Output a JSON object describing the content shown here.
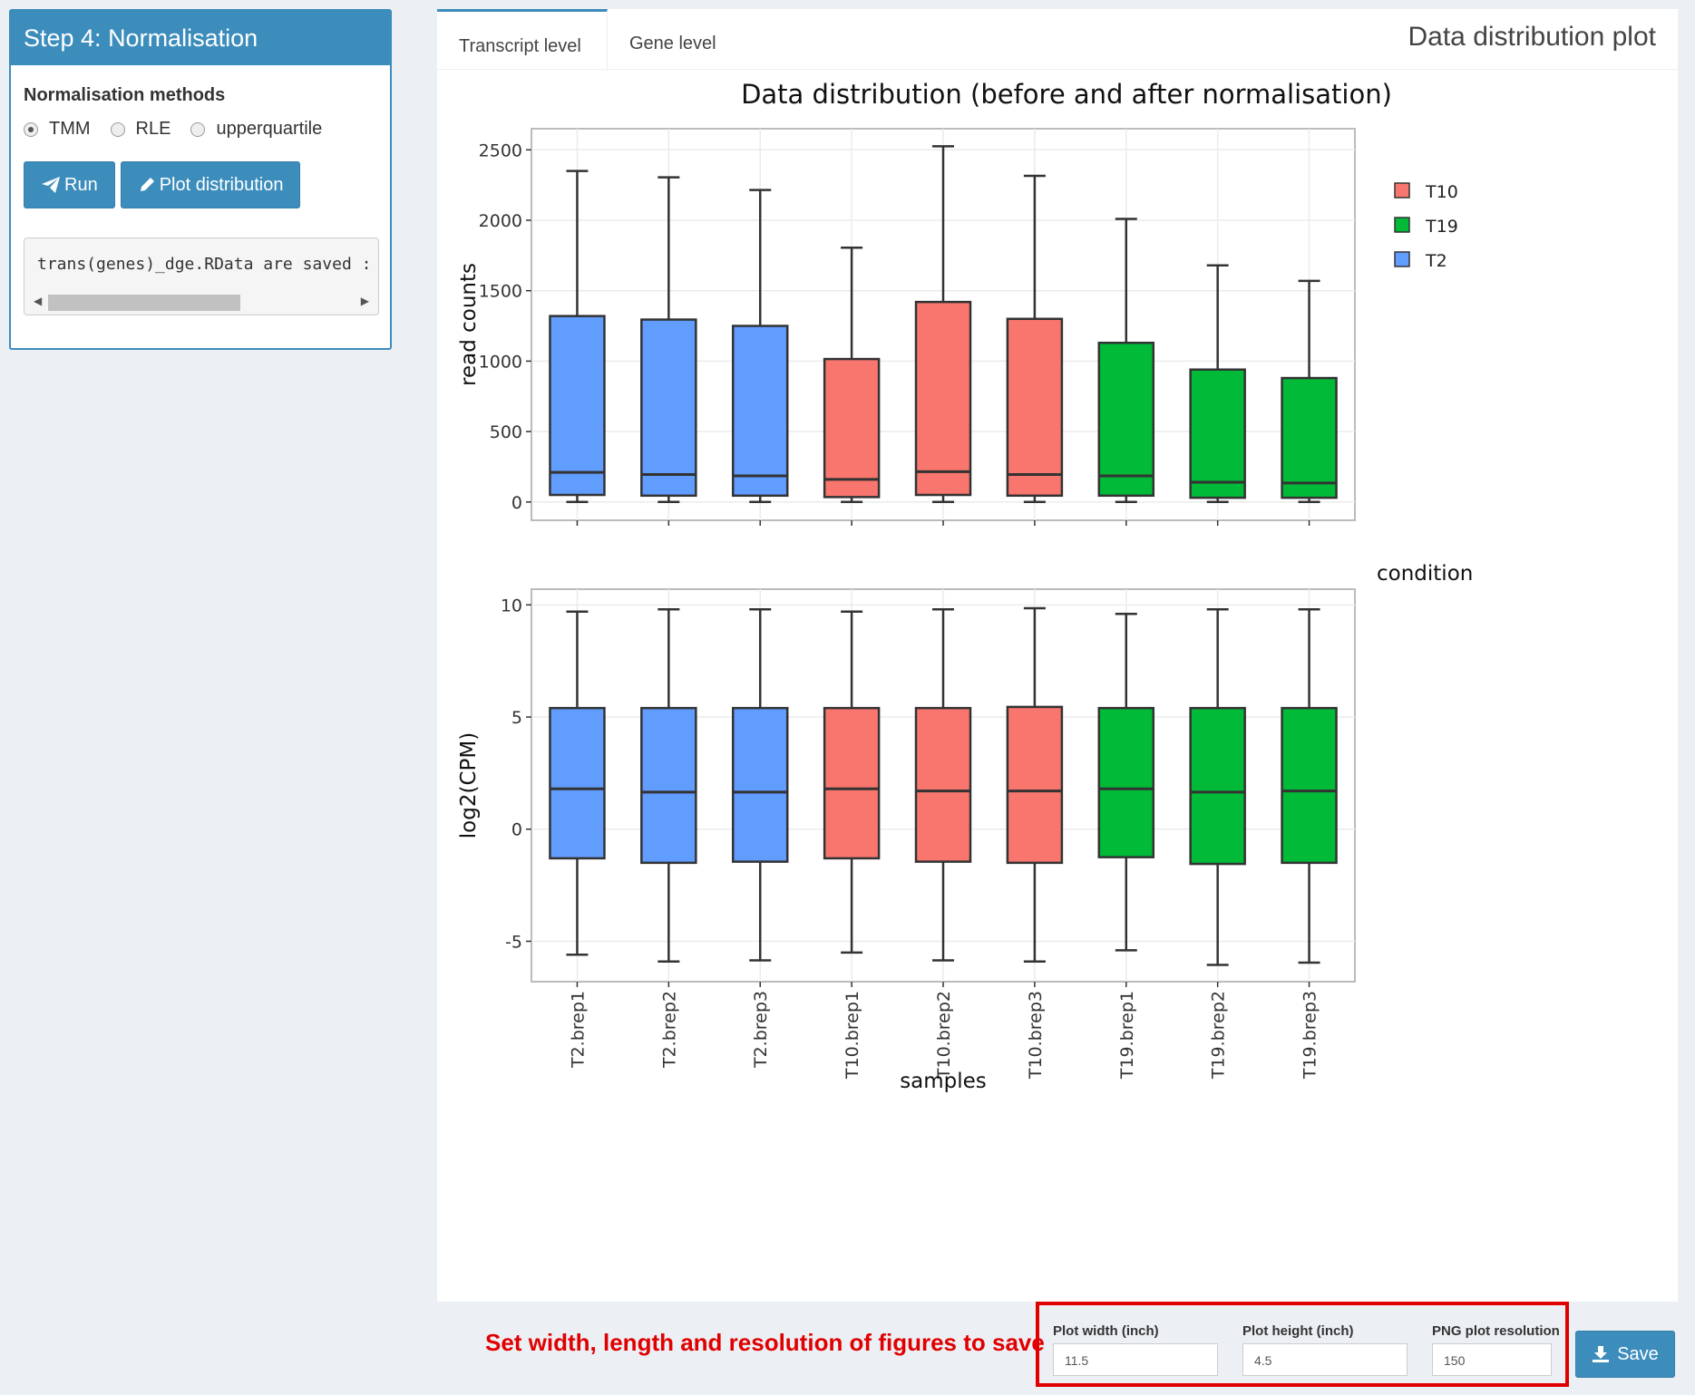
{
  "sidebar": {
    "title": "Step 4: Normalisation",
    "methods_label": "Normalisation methods",
    "methods": [
      {
        "label": "TMM",
        "selected": true
      },
      {
        "label": "RLE",
        "selected": false
      },
      {
        "label": "upperquartile",
        "selected": false
      }
    ],
    "run_label": "Run",
    "plot_label": "Plot distribution",
    "console_text": "trans(genes)_dge.RData are saved :"
  },
  "main": {
    "tabs": [
      {
        "label": "Transcript level",
        "active": true
      },
      {
        "label": "Gene level",
        "active": false
      }
    ],
    "panel_title": "Data distribution plot"
  },
  "controls": {
    "annotation": "Set width, length and resolution of figures to save",
    "width_label": "Plot width (inch)",
    "width_value": "11.5",
    "height_label": "Plot height (inch)",
    "height_value": "4.5",
    "res_label": "PNG plot resolution",
    "res_value": "150",
    "save_label": "Save"
  },
  "colors": {
    "T10": "#f8766d",
    "T19": "#00ba38",
    "T2": "#619cff",
    "accent": "#3c8dbc"
  },
  "chart_data": {
    "type": "boxplot",
    "title": "Data distribution (before and after normalisation)",
    "xlabel": "samples",
    "categories": [
      "T2.brep1",
      "T2.brep2",
      "T2.brep3",
      "T10.brep1",
      "T10.brep2",
      "T10.brep3",
      "T19.brep1",
      "T19.brep2",
      "T19.brep3"
    ],
    "condition": [
      "T2",
      "T2",
      "T2",
      "T10",
      "T10",
      "T10",
      "T19",
      "T19",
      "T19"
    ],
    "legend": {
      "title": "condition",
      "entries": [
        "T10",
        "T19",
        "T2"
      ],
      "position": "right"
    },
    "panels": [
      {
        "ylabel": "read counts",
        "ylim": [
          -130,
          2650
        ],
        "yticks": [
          0,
          500,
          1000,
          1500,
          2000,
          2500
        ],
        "boxes": [
          {
            "min": 0,
            "q1": 50,
            "median": 210,
            "q3": 1320,
            "max": 2350
          },
          {
            "min": 0,
            "q1": 45,
            "median": 195,
            "q3": 1295,
            "max": 2305
          },
          {
            "min": 0,
            "q1": 45,
            "median": 185,
            "q3": 1250,
            "max": 2215
          },
          {
            "min": 0,
            "q1": 35,
            "median": 160,
            "q3": 1015,
            "max": 1805
          },
          {
            "min": 0,
            "q1": 50,
            "median": 215,
            "q3": 1420,
            "max": 2525
          },
          {
            "min": 0,
            "q1": 45,
            "median": 195,
            "q3": 1300,
            "max": 2315
          },
          {
            "min": 0,
            "q1": 45,
            "median": 185,
            "q3": 1130,
            "max": 2010
          },
          {
            "min": 0,
            "q1": 30,
            "median": 140,
            "q3": 940,
            "max": 1680
          },
          {
            "min": 0,
            "q1": 30,
            "median": 135,
            "q3": 880,
            "max": 1570
          }
        ]
      },
      {
        "ylabel": "log2(CPM)",
        "ylim": [
          -6.8,
          10.7
        ],
        "yticks": [
          -5,
          0,
          5,
          10
        ],
        "boxes": [
          {
            "min": -5.6,
            "q1": -1.3,
            "median": 1.8,
            "q3": 5.4,
            "max": 9.7
          },
          {
            "min": -5.9,
            "q1": -1.5,
            "median": 1.65,
            "q3": 5.4,
            "max": 9.8
          },
          {
            "min": -5.85,
            "q1": -1.45,
            "median": 1.65,
            "q3": 5.4,
            "max": 9.8
          },
          {
            "min": -5.5,
            "q1": -1.3,
            "median": 1.8,
            "q3": 5.4,
            "max": 9.7
          },
          {
            "min": -5.85,
            "q1": -1.45,
            "median": 1.7,
            "q3": 5.4,
            "max": 9.8
          },
          {
            "min": -5.9,
            "q1": -1.5,
            "median": 1.7,
            "q3": 5.45,
            "max": 9.85
          },
          {
            "min": -5.4,
            "q1": -1.25,
            "median": 1.8,
            "q3": 5.4,
            "max": 9.6
          },
          {
            "min": -6.05,
            "q1": -1.55,
            "median": 1.65,
            "q3": 5.4,
            "max": 9.8
          },
          {
            "min": -5.95,
            "q1": -1.5,
            "median": 1.7,
            "q3": 5.4,
            "max": 9.8
          }
        ]
      }
    ]
  }
}
